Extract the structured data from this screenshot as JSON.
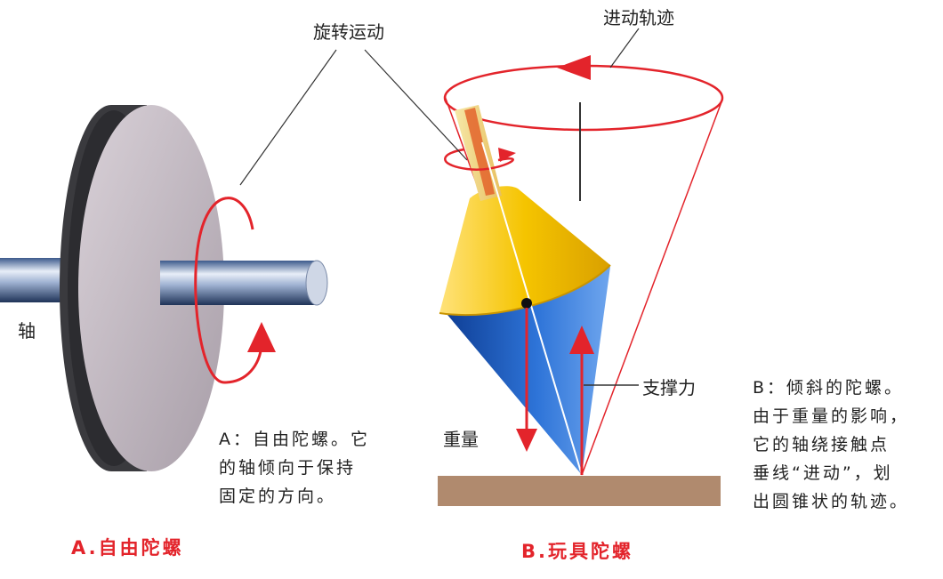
{
  "labels": {
    "rotation": "旋转运动",
    "precession_path": "进动轨迹",
    "axis": "轴",
    "support_force": "支撑力",
    "weight": "重量"
  },
  "captions": {
    "a_lines": [
      "A：自由陀螺。它",
      "的轴倾向于保持",
      "固定的方向。"
    ],
    "b_lines": [
      "B：倾斜的陀螺。",
      "由于重量的影响，",
      "它的轴绕接触点",
      "垂线“进动”，划",
      "出圆锥状的轨迹。"
    ]
  },
  "titles": {
    "a": "A.自由陀螺",
    "b": "B.玩具陀螺"
  },
  "colors": {
    "red": "#e3242b",
    "yellow": "#f5c400",
    "blue": "#1f5fc0",
    "disc_face": "#c8bfc6",
    "disc_edge": "#3a3a3e",
    "ground": "#b08a6e"
  }
}
